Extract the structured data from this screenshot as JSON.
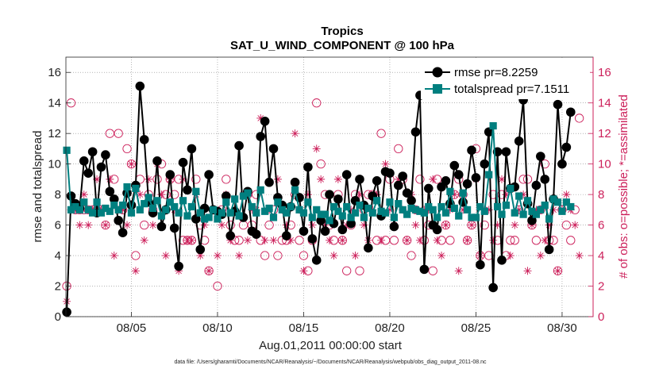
{
  "chart_data": {
    "type": "line",
    "title": "Tropics",
    "subtitle": "SAT_U_WIND_COMPONENT @ 100 hPa",
    "xlabel": "Aug.01,2011 00:00:00 start",
    "ylabel": "rmse and totalspread",
    "y2label": "# of obs: o=possible; *=assimilated",
    "xlim": [
      1.2,
      31.8
    ],
    "ylim": [
      0,
      17
    ],
    "y2lim": [
      0,
      17
    ],
    "yticks": [
      "0",
      "2",
      "4",
      "6",
      "8",
      "10",
      "12",
      "14",
      "16"
    ],
    "y2ticks": [
      "0",
      "2",
      "4",
      "6",
      "8",
      "10",
      "12",
      "14",
      "16"
    ],
    "xticks": [
      {
        "day": 5,
        "label": "08/05"
      },
      {
        "day": 10,
        "label": "08/10"
      },
      {
        "day": 15,
        "label": "08/15"
      },
      {
        "day": 20,
        "label": "08/20"
      },
      {
        "day": 25,
        "label": "08/25"
      },
      {
        "day": 30,
        "label": "08/30"
      }
    ],
    "x_start": 1.25,
    "x_step": 0.25,
    "series": [
      {
        "name": "rmse",
        "legend": "rmse pr=8.2259",
        "color": "#000000",
        "marker": "circle",
        "values": [
          0.3,
          7.9,
          7.4,
          7.1,
          10.2,
          9.4,
          10.8,
          6.8,
          9.8,
          10.6,
          8.2,
          7.7,
          6.3,
          5.5,
          8.1,
          7.3,
          8.6,
          15.1,
          11.6,
          7.5,
          6.8,
          10.2,
          5.9,
          7.0,
          9.3,
          5.8,
          3.3,
          10.1,
          8.3,
          11.0,
          6.4,
          4.4,
          7.1,
          9.3,
          7.0,
          6.9,
          6.7,
          7.9,
          5.3,
          6.9,
          11.2,
          6.5,
          8.2,
          5.6,
          5.4,
          11.8,
          12.8,
          8.8,
          11.0,
          7.8,
          7.3,
          5.3,
          7.2,
          8.8,
          7.8,
          5.6,
          9.8,
          5.1,
          3.7,
          6.3,
          5.6,
          8.0,
          6.1,
          7.7,
          5.7,
          9.3,
          6.1,
          7.6,
          9.0,
          7.3,
          4.5,
          7.9,
          8.9,
          6.6,
          9.5,
          9.4,
          5.9,
          8.6,
          9.2,
          8.1,
          7.6,
          12.1,
          14.5,
          3.1,
          8.4,
          6.0,
          5.7,
          8.5,
          8.9,
          7.4,
          9.9,
          9.3,
          7.5,
          8.7,
          10.9,
          9.1,
          3.4,
          10.0,
          12.1,
          1.9,
          10.8,
          3.7,
          10.8,
          8.4,
          8.5,
          11.5,
          14.2,
          7.4,
          6.3,
          8.6,
          10.5,
          9.0,
          4.4,
          7.7,
          13.9,
          10.0,
          11.1,
          13.4
        ]
      },
      {
        "name": "totalspread",
        "legend": "totalspread pr=7.1511",
        "color": "#007f7f",
        "marker": "square",
        "values": [
          10.9,
          7.0,
          7.2,
          7.0,
          7.5,
          7.0,
          6.8,
          7.5,
          6.8,
          7.1,
          6.9,
          7.3,
          7.0,
          7.3,
          8.5,
          6.8,
          8.4,
          7.0,
          7.4,
          7.8,
          7.1,
          7.6,
          6.6,
          7.0,
          7.5,
          7.2,
          6.8,
          7.6,
          6.6,
          7.2,
          8.2,
          6.8,
          6.4,
          6.5,
          7.0,
          6.4,
          6.8,
          7.5,
          6.8,
          7.7,
          6.6,
          7.9,
          8.1,
          7.2,
          6.8,
          8.3,
          6.9,
          7.1,
          6.5,
          7.5,
          7.0,
          6.8,
          7.2,
          8.3,
          7.0,
          6.8,
          7.5,
          6.5,
          7.0,
          6.7,
          6.7,
          6.3,
          7.2,
          6.9,
          6.6,
          7.2,
          6.5,
          6.8,
          7.3,
          6.5,
          7.1,
          6.8,
          7.6,
          6.9,
          6.8,
          7.5,
          6.5,
          7.4,
          7.0,
          6.7,
          7.1,
          7.0,
          6.9,
          6.8,
          7.2,
          7.0,
          6.5,
          7.2,
          6.8,
          8.2,
          7.1,
          6.6,
          8.1,
          7.0,
          6.5,
          6.5,
          7.2,
          6.9,
          9.3,
          12.5,
          7.2,
          6.7,
          7.3,
          8.4,
          6.8,
          7.9,
          6.7,
          7.6,
          6.9,
          6.7,
          7.0,
          7.3,
          6.4,
          7.7,
          7.5,
          6.9,
          7.5,
          7.2
        ]
      }
    ],
    "obs_possible": [
      2,
      14,
      7,
      7,
      7,
      7,
      7,
      7,
      7,
      6,
      12,
      9,
      12,
      7,
      11,
      10,
      4,
      9,
      6,
      8,
      7,
      9,
      10,
      8,
      9,
      8,
      9,
      5,
      5,
      5,
      9,
      6,
      5,
      3,
      7,
      2,
      7,
      9,
      6,
      5,
      5,
      6,
      8,
      6,
      8,
      5,
      4,
      6,
      7,
      4,
      5,
      5,
      6,
      8,
      5,
      4,
      3,
      5,
      14,
      10,
      8,
      6,
      5,
      8,
      5,
      3,
      6,
      8,
      3,
      7,
      8,
      8,
      5,
      12,
      5,
      9,
      5,
      11,
      9,
      5,
      4,
      7,
      9,
      5,
      6,
      3,
      9,
      5,
      6,
      5,
      8,
      9,
      8,
      5,
      6,
      11,
      4,
      6,
      4,
      8,
      5,
      8,
      4,
      5,
      5,
      7,
      9,
      9,
      6,
      5,
      7,
      10,
      5,
      5,
      3,
      7,
      6,
      5,
      7,
      13
    ],
    "obs_assimilated": [
      1,
      7,
      7,
      6,
      8,
      6,
      7,
      9,
      7,
      6,
      9,
      4,
      7,
      7,
      6,
      10,
      3,
      8,
      5,
      9,
      6,
      10,
      8,
      4,
      9,
      7,
      3,
      9,
      5,
      5,
      8,
      4,
      6,
      3,
      7,
      4,
      6,
      8,
      5,
      7,
      4,
      8,
      5,
      7,
      7,
      13,
      5,
      7,
      5,
      9,
      7,
      6,
      5,
      12,
      7,
      3,
      8,
      6,
      11,
      9,
      6,
      5,
      4,
      9,
      5,
      6,
      7,
      4,
      8,
      6,
      5,
      7,
      8,
      5,
      10,
      7,
      6,
      9,
      7,
      5,
      8,
      6,
      5,
      7,
      7,
      9,
      5,
      4,
      6,
      7,
      8,
      3,
      7,
      5,
      6,
      9,
      4,
      7,
      7,
      5,
      6,
      9,
      8,
      4,
      6,
      7,
      8,
      3,
      6,
      7,
      4,
      5,
      6,
      7,
      3,
      7,
      8,
      7,
      6,
      4
    ],
    "obs_color": "#cc1f5a",
    "footnote": "data file: /Users/gharamti/Documents/NCAR/Reanalysis/~/Documents/NCAR/Reanalysis/webpub/obs_diag_output_2011-08.nc"
  }
}
